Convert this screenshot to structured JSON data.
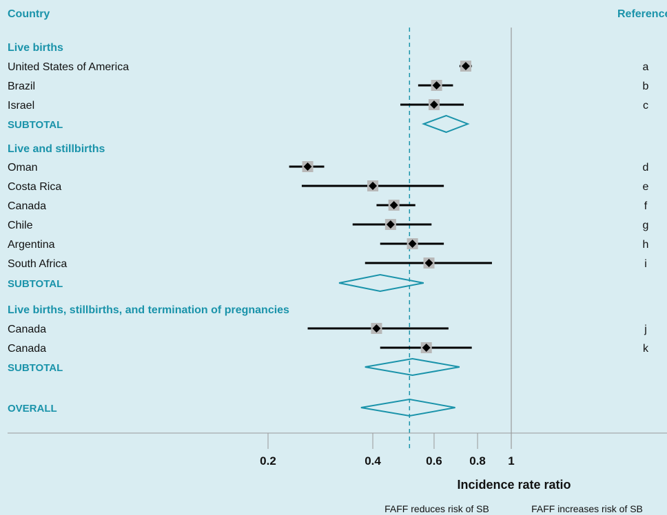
{
  "chart_data": {
    "type": "forest",
    "column_headers": {
      "country": "Country",
      "reference": "Reference"
    },
    "xlabel": "Incidence rate ratio",
    "x_scale": "log",
    "xticks": [
      {
        "value": 0.2,
        "label": "0.2"
      },
      {
        "value": 0.4,
        "label": "0.4"
      },
      {
        "value": 0.6,
        "label": "0.6"
      },
      {
        "value": 0.8,
        "label": "0.8"
      },
      {
        "value": 1,
        "label": "1"
      }
    ],
    "xlim": [
      0.2,
      1.0
    ],
    "null_line": 1,
    "overall_reference_line": 0.51,
    "groups": [
      {
        "title": "Live births",
        "studies": [
          {
            "country": "United States of America",
            "estimate": 0.74,
            "lower": 0.71,
            "upper": 0.77,
            "ref": "a"
          },
          {
            "country": "Brazil",
            "estimate": 0.61,
            "lower": 0.54,
            "upper": 0.68,
            "ref": "b"
          },
          {
            "country": "Israel",
            "estimate": 0.6,
            "lower": 0.48,
            "upper": 0.73,
            "ref": "c"
          }
        ],
        "subtotal": {
          "label": "SUBTOTAL",
          "estimate": 0.65,
          "lower": 0.56,
          "upper": 0.75
        }
      },
      {
        "title": "Live and stillbirths",
        "studies": [
          {
            "country": "Oman",
            "estimate": 0.26,
            "lower": 0.23,
            "upper": 0.29,
            "ref": "d"
          },
          {
            "country": "Costa Rica",
            "estimate": 0.4,
            "lower": 0.25,
            "upper": 0.64,
            "ref": "e"
          },
          {
            "country": "Canada",
            "estimate": 0.46,
            "lower": 0.41,
            "upper": 0.53,
            "ref": "f"
          },
          {
            "country": "Chile",
            "estimate": 0.45,
            "lower": 0.35,
            "upper": 0.59,
            "ref": "g"
          },
          {
            "country": "Argentina",
            "estimate": 0.52,
            "lower": 0.42,
            "upper": 0.64,
            "ref": "h"
          },
          {
            "country": "South Africa",
            "estimate": 0.58,
            "lower": 0.38,
            "upper": 0.88,
            "ref": "i"
          }
        ],
        "subtotal": {
          "label": "SUBTOTAL",
          "estimate": 0.42,
          "lower": 0.32,
          "upper": 0.56
        }
      },
      {
        "title": "Live births, stillbirths, and termination of pregnancies",
        "studies": [
          {
            "country": "Canada",
            "estimate": 0.41,
            "lower": 0.26,
            "upper": 0.66,
            "ref": "j"
          },
          {
            "country": "Canada",
            "estimate": 0.57,
            "lower": 0.42,
            "upper": 0.77,
            "ref": "k"
          }
        ],
        "subtotal": {
          "label": "SUBTOTAL",
          "estimate": 0.52,
          "lower": 0.38,
          "upper": 0.71
        }
      }
    ],
    "overall": {
      "label": "OVERALL",
      "estimate": 0.51,
      "lower": 0.37,
      "upper": 0.69
    },
    "direction_notes": {
      "left": "FAFF reduces risk of SB",
      "right": "FAFF increases risk of SB"
    },
    "colors": {
      "background": "#d9edf2",
      "accent": "#1a93aa",
      "point": "#000000",
      "point_box": "#b8b8b8",
      "null_line": "#9a9a9a"
    }
  }
}
